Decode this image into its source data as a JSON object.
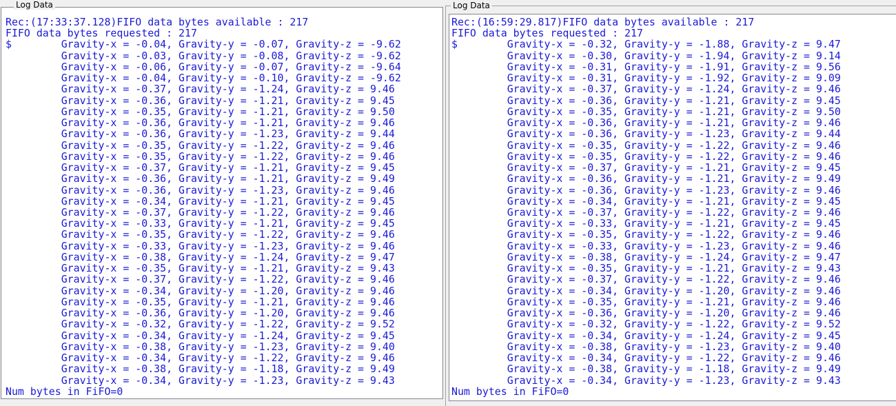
{
  "left_panel": {
    "title": "Log Data",
    "header_line1": "Rec:(17:33:37.128)FIFO data bytes available : 217",
    "header_line2": "FIFO data bytes requested : 217",
    "prompt": "$",
    "rows": [
      [
        "-0.04",
        "-0.07",
        "-9.62"
      ],
      [
        "-0.03",
        "-0.08",
        "-9.62"
      ],
      [
        "-0.06",
        "-0.07",
        "-9.64"
      ],
      [
        "-0.04",
        "-0.10",
        "-9.62"
      ],
      [
        "-0.37",
        "-1.24",
        "9.46"
      ],
      [
        "-0.36",
        "-1.21",
        "9.45"
      ],
      [
        "-0.35",
        "-1.21",
        "9.50"
      ],
      [
        "-0.36",
        "-1.21",
        "9.46"
      ],
      [
        "-0.36",
        "-1.23",
        "9.44"
      ],
      [
        "-0.35",
        "-1.22",
        "9.46"
      ],
      [
        "-0.35",
        "-1.22",
        "9.46"
      ],
      [
        "-0.37",
        "-1.21",
        "9.45"
      ],
      [
        "-0.36",
        "-1.21",
        "9.49"
      ],
      [
        "-0.36",
        "-1.23",
        "9.46"
      ],
      [
        "-0.34",
        "-1.21",
        "9.45"
      ],
      [
        "-0.37",
        "-1.22",
        "9.46"
      ],
      [
        "-0.33",
        "-1.21",
        "9.45"
      ],
      [
        "-0.35",
        "-1.22",
        "9.46"
      ],
      [
        "-0.33",
        "-1.23",
        "9.46"
      ],
      [
        "-0.38",
        "-1.24",
        "9.47"
      ],
      [
        "-0.35",
        "-1.21",
        "9.43"
      ],
      [
        "-0.37",
        "-1.22",
        "9.46"
      ],
      [
        "-0.34",
        "-1.20",
        "9.46"
      ],
      [
        "-0.35",
        "-1.21",
        "9.46"
      ],
      [
        "-0.36",
        "-1.20",
        "9.46"
      ],
      [
        "-0.32",
        "-1.22",
        "9.52"
      ],
      [
        "-0.34",
        "-1.24",
        "9.45"
      ],
      [
        "-0.38",
        "-1.23",
        "9.40"
      ],
      [
        "-0.34",
        "-1.22",
        "9.46"
      ],
      [
        "-0.38",
        "-1.18",
        "9.49"
      ],
      [
        "-0.34",
        "-1.23",
        "9.43"
      ]
    ],
    "footer": "Num bytes in FiFO=0"
  },
  "right_panel": {
    "title": "Log Data",
    "header_line1": "Rec:(16:59:29.817)FIFO data bytes available : 217",
    "header_line2": "FIFO data bytes requested : 217",
    "prompt": "$",
    "rows": [
      [
        "-0.32",
        "-1.88",
        "9.47"
      ],
      [
        "-0.30",
        "-1.94",
        "9.14"
      ],
      [
        "-0.31",
        "-1.91",
        "9.56"
      ],
      [
        "-0.31",
        "-1.92",
        "9.09"
      ],
      [
        "-0.37",
        "-1.24",
        "9.46"
      ],
      [
        "-0.36",
        "-1.21",
        "9.45"
      ],
      [
        "-0.35",
        "-1.21",
        "9.50"
      ],
      [
        "-0.36",
        "-1.21",
        "9.46"
      ],
      [
        "-0.36",
        "-1.23",
        "9.44"
      ],
      [
        "-0.35",
        "-1.22",
        "9.46"
      ],
      [
        "-0.35",
        "-1.22",
        "9.46"
      ],
      [
        "-0.37",
        "-1.21",
        "9.45"
      ],
      [
        "-0.36",
        "-1.21",
        "9.49"
      ],
      [
        "-0.36",
        "-1.23",
        "9.46"
      ],
      [
        "-0.34",
        "-1.21",
        "9.45"
      ],
      [
        "-0.37",
        "-1.22",
        "9.46"
      ],
      [
        "-0.33",
        "-1.21",
        "9.45"
      ],
      [
        "-0.35",
        "-1.22",
        "9.46"
      ],
      [
        "-0.33",
        "-1.23",
        "9.46"
      ],
      [
        "-0.38",
        "-1.24",
        "9.47"
      ],
      [
        "-0.35",
        "-1.21",
        "9.43"
      ],
      [
        "-0.37",
        "-1.22",
        "9.46"
      ],
      [
        "-0.34",
        "-1.20",
        "9.46"
      ],
      [
        "-0.35",
        "-1.21",
        "9.46"
      ],
      [
        "-0.36",
        "-1.20",
        "9.46"
      ],
      [
        "-0.32",
        "-1.22",
        "9.52"
      ],
      [
        "-0.34",
        "-1.24",
        "9.45"
      ],
      [
        "-0.38",
        "-1.23",
        "9.40"
      ],
      [
        "-0.34",
        "-1.22",
        "9.46"
      ],
      [
        "-0.38",
        "-1.18",
        "9.49"
      ],
      [
        "-0.34",
        "-1.23",
        "9.43"
      ]
    ],
    "footer": "Num bytes in FiFO=0"
  },
  "labels": {
    "gx": "Gravity-x = ",
    "gy": "Gravity-y = ",
    "gz": "Gravity-z = "
  },
  "colors": {
    "log_text": "#1a1ad6",
    "log_background": "#ffffff",
    "window_background": "#f0f0f0"
  }
}
